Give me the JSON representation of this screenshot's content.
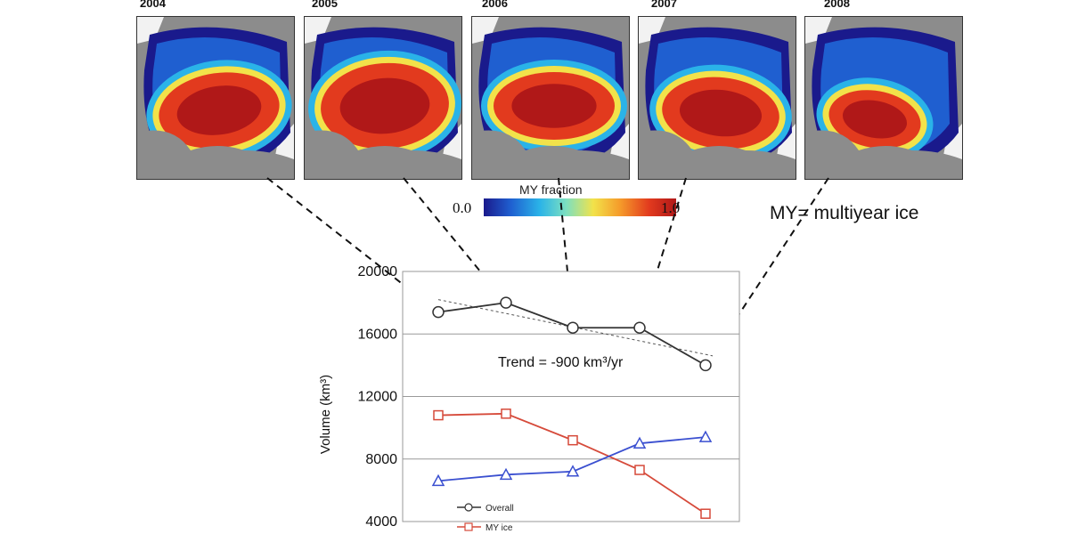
{
  "maps": [
    {
      "year": "2004"
    },
    {
      "year": "2005"
    },
    {
      "year": "2006"
    },
    {
      "year": "2007"
    },
    {
      "year": "2008"
    }
  ],
  "colorbar": {
    "title": "MY fraction",
    "min_label": "0.0",
    "max_label": "1.0",
    "colors": [
      "#1a1a8c",
      "#1f5fd0",
      "#2ab3e8",
      "#7de0c0",
      "#f2e24a",
      "#f59a2a",
      "#e23a1e",
      "#b01818"
    ]
  },
  "note": "MY= multiyear ice",
  "chart_data": {
    "type": "line",
    "x": [
      "2004",
      "2005",
      "2006",
      "2007",
      "2008"
    ],
    "ylabel": "Volume (km³)",
    "yticks": [
      4000,
      8000,
      12000,
      16000,
      20000
    ],
    "ylim": [
      4000,
      20000
    ],
    "grid": true,
    "annotation": "Trend = -900 km³/yr",
    "series": [
      {
        "name": "Overall",
        "values": [
          17400,
          18000,
          16400,
          16400,
          14000
        ],
        "color": "#333333",
        "marker": "circle"
      },
      {
        "name": "MY ice",
        "values": [
          10800,
          10900,
          9200,
          7300,
          4500
        ],
        "color": "#d64a3a",
        "marker": "square"
      },
      {
        "name": "",
        "values": [
          6600,
          7000,
          7200,
          9000,
          9400
        ],
        "color": "#3a4fd0",
        "marker": "triangle"
      }
    ],
    "trendline": {
      "start": 18200,
      "end": 14600
    }
  }
}
